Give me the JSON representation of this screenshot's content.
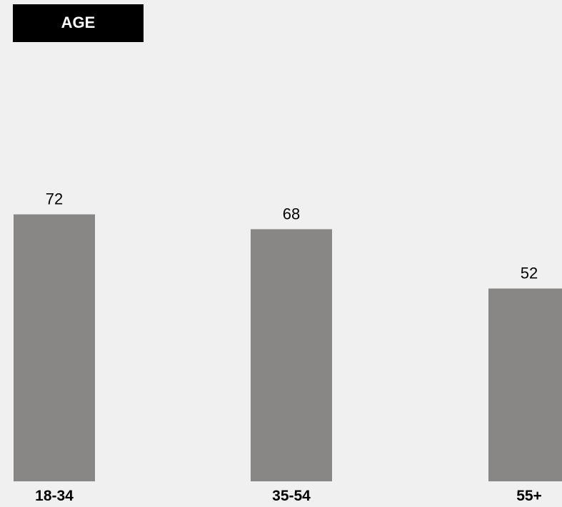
{
  "chart_data": {
    "type": "bar",
    "title": "AGE",
    "categories": [
      "18-34",
      "35-54",
      "55+"
    ],
    "values": [
      72,
      68,
      52
    ],
    "xlabel": "",
    "ylabel": "",
    "ylim": [
      0,
      100
    ],
    "grid": false,
    "data_labels": true,
    "bar_color": "#888785",
    "title_bg_color": "#000000",
    "title_text_color": "#ffffff",
    "background_color": "#f0f0f0"
  }
}
